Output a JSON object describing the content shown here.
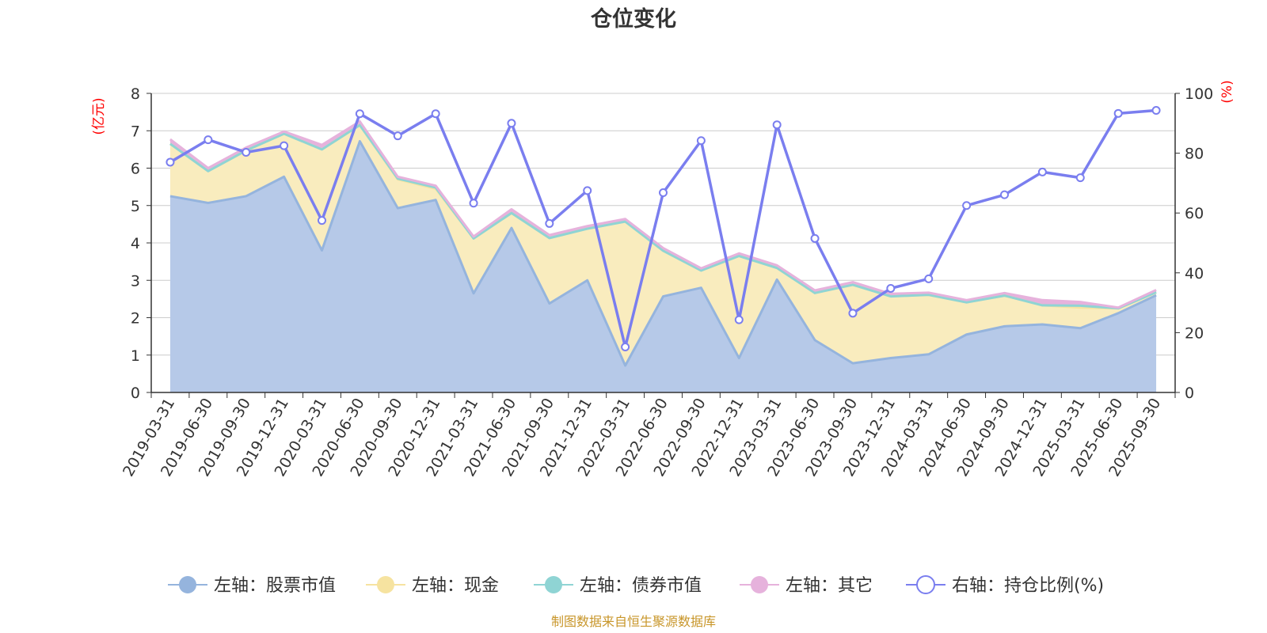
{
  "colors": {
    "stock": "#95b4dd",
    "stock_fill": "#b6c9e8",
    "cash": "#f6e3a0",
    "cash_fill": "#f9ecbe",
    "bond": "#8fd4d4",
    "other": "#e6b2dc",
    "ratio": "#7a7eef",
    "grid": "#cccccc",
    "axis": "#333333",
    "unit": "#ff0000",
    "source": "#c8962a"
  },
  "chart_data": {
    "type": "area",
    "title": "仓位变化",
    "left_unit": "(亿元)",
    "right_unit": "(%)",
    "left_ylim": [
      0,
      8
    ],
    "left_ticks": [
      "0",
      "1",
      "2",
      "3",
      "4",
      "5",
      "6",
      "7",
      "8"
    ],
    "right_ylim": [
      0,
      100
    ],
    "right_ticks": [
      "0",
      "20",
      "40",
      "60",
      "80",
      "100"
    ],
    "grid": true,
    "legend_position": "bottom",
    "categories": [
      "2019-03-31",
      "2019-06-30",
      "2019-09-30",
      "2019-12-31",
      "2020-03-31",
      "2020-06-30",
      "2020-09-30",
      "2020-12-31",
      "2021-03-31",
      "2021-06-30",
      "2021-09-30",
      "2021-12-31",
      "2022-03-31",
      "2022-06-30",
      "2022-09-30",
      "2022-12-31",
      "2023-03-31",
      "2023-06-30",
      "2023-09-30",
      "2023-12-31",
      "2024-03-31",
      "2024-06-30",
      "2024-09-30",
      "2024-12-31",
      "2025-03-31",
      "2025-06-30",
      "2025-09-30"
    ],
    "series": [
      {
        "name": "左轴：股票市值",
        "axis": "left",
        "values": [
          5.25,
          5.07,
          5.25,
          5.77,
          3.8,
          6.72,
          4.93,
          5.15,
          2.65,
          4.4,
          2.38,
          3.0,
          0.72,
          2.57,
          2.8,
          0.92,
          3.02,
          1.4,
          0.78,
          0.92,
          1.02,
          1.55,
          1.77,
          1.82,
          1.72,
          2.12,
          2.6
        ]
      },
      {
        "name": "左轴：现金",
        "axis": "left",
        "values": [
          1.4,
          0.85,
          1.22,
          1.15,
          2.7,
          0.43,
          0.77,
          0.3,
          1.47,
          0.4,
          1.75,
          1.38,
          3.85,
          1.22,
          0.46,
          2.73,
          0.31,
          1.26,
          2.1,
          1.65,
          1.59,
          0.86,
          0.82,
          0.51,
          0.55,
          0.13,
          0.08
        ]
      },
      {
        "name": "左轴：债券市值",
        "axis": "left",
        "values": [
          0,
          0,
          0,
          0,
          0,
          0,
          0.02,
          0.03,
          0,
          0,
          0,
          0,
          0,
          0,
          0,
          0,
          0,
          0,
          0,
          0,
          0,
          0,
          0,
          0,
          0.05,
          0,
          0
        ]
      },
      {
        "name": "左轴：其它",
        "axis": "left",
        "values": [
          0.12,
          0.08,
          0.08,
          0.06,
          0.12,
          0.1,
          0.05,
          0.05,
          0.05,
          0.1,
          0.08,
          0.07,
          0.07,
          0.07,
          0.06,
          0.07,
          0.07,
          0.07,
          0.07,
          0.07,
          0.06,
          0.06,
          0.07,
          0.14,
          0.1,
          0.02,
          0.06
        ]
      },
      {
        "name": "右轴：持仓比例(%)",
        "axis": "right",
        "values": [
          77,
          84.5,
          80.3,
          82.5,
          57.5,
          93.2,
          85.8,
          93.2,
          63.3,
          90,
          56.5,
          67.5,
          15.2,
          66.8,
          84.2,
          24.3,
          89.5,
          51.5,
          26.5,
          34.8,
          38,
          62.5,
          66.1,
          73.7,
          71.8,
          93.3,
          94.3
        ]
      }
    ]
  },
  "source_text": "制图数据来自恒生聚源数据库"
}
